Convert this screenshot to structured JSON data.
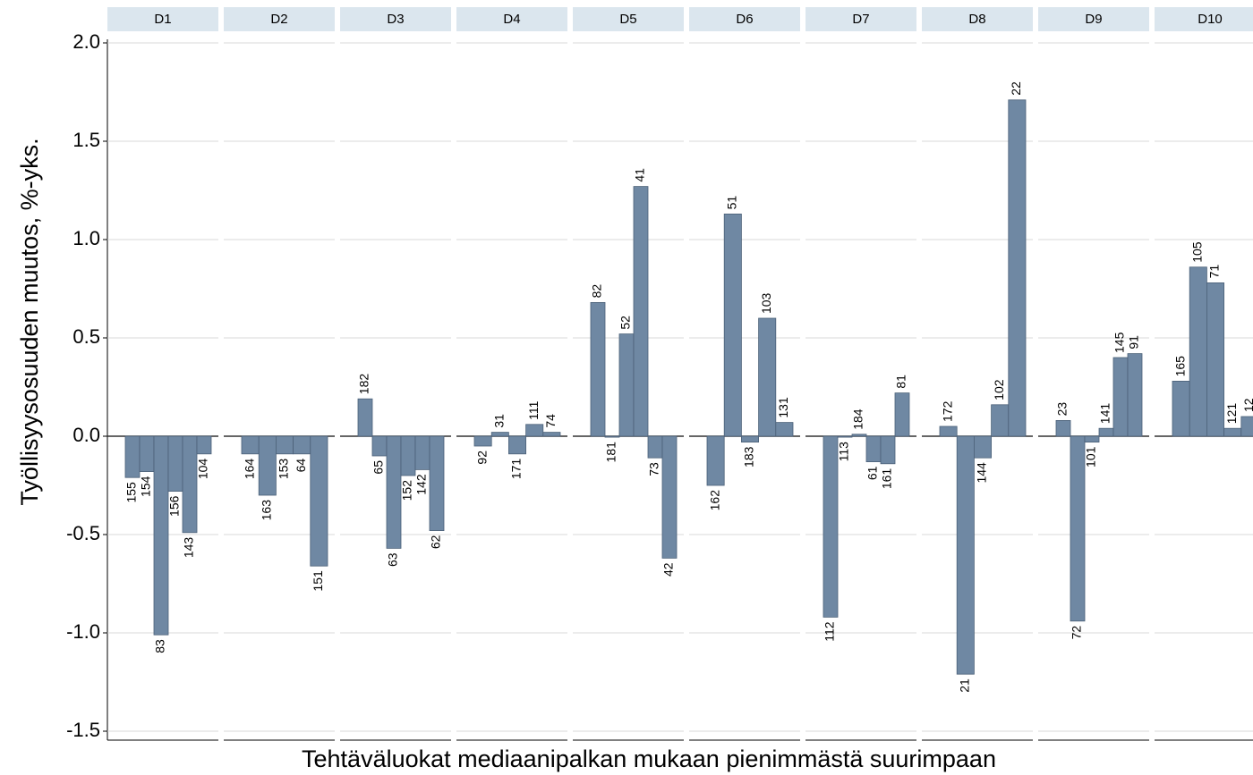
{
  "chart_data": {
    "type": "bar",
    "ylabel": "Työllisyysosuuden muutos, %-yks.",
    "xlabel": "Tehtäväluokat mediaanipalkan mukaan pienimmästä suurimpaan",
    "color": "#6f88a3",
    "grid": true,
    "ylim": [
      -1.5,
      2.0
    ],
    "yticks": [
      {
        "value": -1.5,
        "label": "-1.5"
      },
      {
        "value": -1,
        "label": "-1.0"
      },
      {
        "value": -0.5,
        "label": "-0.5"
      },
      {
        "value": 0,
        "label": "0.0"
      },
      {
        "value": 0.5,
        "label": "0.5"
      },
      {
        "value": 1,
        "label": "1.0"
      },
      {
        "value": 1.5,
        "label": "1.5"
      },
      {
        "value": 2,
        "label": "2.0"
      }
    ],
    "panels": [
      {
        "title": "D1",
        "categories": [
          "155",
          "154",
          "83",
          "156",
          "143",
          "104"
        ],
        "values": [
          -0.21,
          -0.18,
          -1.01,
          -0.28,
          -0.49,
          -0.09
        ]
      },
      {
        "title": "D2",
        "categories": [
          "164",
          "163",
          "153",
          "64",
          "151"
        ],
        "values": [
          -0.09,
          -0.3,
          -0.09,
          -0.09,
          -0.66
        ]
      },
      {
        "title": "D3",
        "categories": [
          "182",
          "65",
          "63",
          "152",
          "142",
          "62"
        ],
        "values": [
          0.19,
          -0.1,
          -0.57,
          -0.2,
          -0.17,
          -0.48
        ]
      },
      {
        "title": "D4",
        "categories": [
          "92",
          "31",
          "171",
          "111",
          "74"
        ],
        "values": [
          -0.05,
          0.02,
          -0.09,
          0.06,
          0.02
        ]
      },
      {
        "title": "D5",
        "categories": [
          "82",
          "181",
          "52",
          "41",
          "73",
          "42"
        ],
        "values": [
          0.68,
          -0.005,
          0.52,
          1.27,
          -0.11,
          -0.62
        ]
      },
      {
        "title": "D6",
        "categories": [
          "162",
          "51",
          "183",
          "103",
          "131"
        ],
        "values": [
          -0.25,
          1.13,
          -0.03,
          0.6,
          0.07
        ]
      },
      {
        "title": "D7",
        "categories": [
          "112",
          "113",
          "184",
          "61",
          "161",
          "81"
        ],
        "values": [
          -0.92,
          -0.005,
          0.01,
          -0.13,
          -0.14,
          0.22
        ]
      },
      {
        "title": "D8",
        "categories": [
          "172",
          "21",
          "144",
          "102",
          "22"
        ],
        "values": [
          0.05,
          -1.21,
          -0.11,
          0.16,
          1.71
        ]
      },
      {
        "title": "D9",
        "categories": [
          "23",
          "72",
          "101",
          "141",
          "145",
          "91"
        ],
        "values": [
          0.08,
          -0.94,
          -0.03,
          0.04,
          0.4,
          0.42
        ]
      },
      {
        "title": "D10",
        "categories": [
          "165",
          "105",
          "71",
          "121",
          "12"
        ],
        "values": [
          0.28,
          0.86,
          0.78,
          0.04,
          0.1
        ]
      }
    ]
  }
}
